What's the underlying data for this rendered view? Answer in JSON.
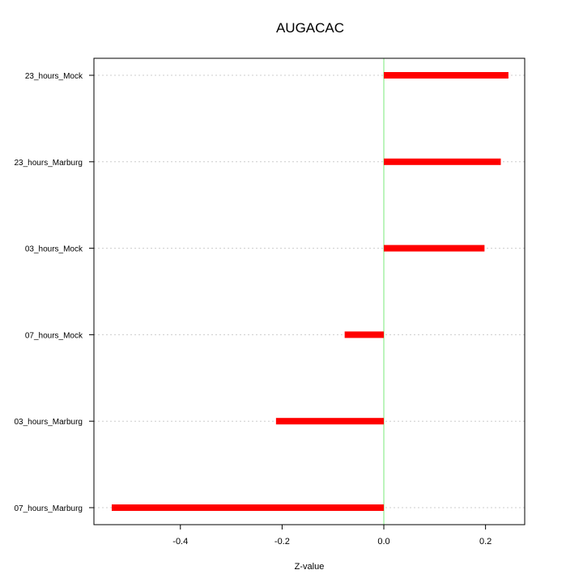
{
  "chart_data": {
    "type": "bar",
    "orientation": "horizontal",
    "title": "AUGACAC",
    "xlabel": "Z-value",
    "ylabel": "",
    "xlim": [
      -0.57,
      0.277
    ],
    "xticks": [
      -0.4,
      -0.2,
      0.0,
      0.2
    ],
    "xtick_labels": [
      "-0.4",
      "-0.2",
      "0.0",
      "0.2"
    ],
    "categories": [
      "23_hours_Mock",
      "23_hours_Marburg",
      "03_hours_Mock",
      "07_hours_Mock",
      "03_hours_Marburg",
      "07_hours_Marburg"
    ],
    "values": [
      0.245,
      0.23,
      0.198,
      -0.077,
      -0.212,
      -0.535
    ],
    "bar_color": "#ff0000",
    "reference_line": {
      "x": 0.0,
      "color": "#90ee90"
    },
    "grid": "horizontal dotted",
    "legend": "none"
  }
}
